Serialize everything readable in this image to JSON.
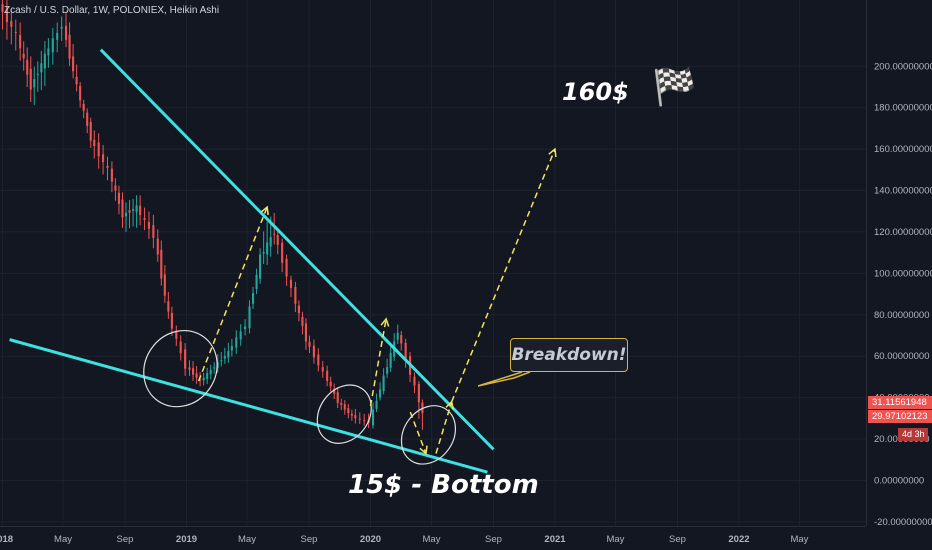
{
  "header": {
    "title": "Zcash / U.S. Dollar, 1W, POLONIEX, Heikin Ashi"
  },
  "annotations": {
    "target": "160$",
    "target_icon": "checkered-flag-icon",
    "bottom": "15$ - Bottom",
    "callout": "Breakdown!"
  },
  "price_tags": {
    "current_1": "31.11561948",
    "current_2": "29.97102123",
    "countdown": "4d 3h"
  },
  "colors": {
    "background": "#131722",
    "bull": "#26a69a",
    "bear": "#ef5350",
    "trendline": "#3ee0e0",
    "projection": "#f5e55b",
    "ellipse": "#e0e0e0",
    "grid": "#1e222d",
    "axis_text": "#b2b5be",
    "callout_border": "#d6b43e"
  },
  "chart_data": {
    "type": "candlestick",
    "title": "Zcash / U.S. Dollar, 1W, POLONIEX, Heikin Ashi",
    "ylim": [
      -22,
      232
    ],
    "y_ticks": [
      "-20.00000000",
      "0.00000000",
      "20.00000000",
      "40.00000000",
      "60.00000000",
      "80.00000000",
      "100.00000000",
      "120.00000000",
      "140.00000000",
      "160.00000000",
      "180.00000000",
      "200.00000000"
    ],
    "x_ticks": [
      "2018",
      "May",
      "Sep",
      "2019",
      "May",
      "Sep",
      "2020",
      "May",
      "Sep",
      "2021",
      "May",
      "Sep",
      "2022",
      "May"
    ],
    "grid": true,
    "series": [
      {
        "kind": "candles",
        "points": [
          {
            "t": "2018-01-01",
            "o": 230,
            "h": 240,
            "l": 200,
            "c": 215
          },
          {
            "t": "2018-02-05",
            "o": 215,
            "h": 225,
            "l": 180,
            "c": 190
          },
          {
            "t": "2018-03-05",
            "o": 190,
            "h": 215,
            "l": 175,
            "c": 205
          },
          {
            "t": "2018-04-02",
            "o": 205,
            "h": 228,
            "l": 195,
            "c": 220
          },
          {
            "t": "2018-05-07",
            "o": 220,
            "h": 230,
            "l": 185,
            "c": 190
          },
          {
            "t": "2018-06-04",
            "o": 190,
            "h": 192,
            "l": 160,
            "c": 165
          },
          {
            "t": "2018-07-02",
            "o": 165,
            "h": 172,
            "l": 140,
            "c": 150
          },
          {
            "t": "2018-08-06",
            "o": 150,
            "h": 155,
            "l": 120,
            "c": 128
          },
          {
            "t": "2018-09-03",
            "o": 128,
            "h": 140,
            "l": 115,
            "c": 132
          },
          {
            "t": "2018-10-01",
            "o": 132,
            "h": 140,
            "l": 110,
            "c": 118
          },
          {
            "t": "2018-11-05",
            "o": 118,
            "h": 125,
            "l": 75,
            "c": 80
          },
          {
            "t": "2018-12-03",
            "o": 80,
            "h": 84,
            "l": 50,
            "c": 55
          },
          {
            "t": "2019-01-07",
            "o": 55,
            "h": 60,
            "l": 44,
            "c": 48
          },
          {
            "t": "2019-02-04",
            "o": 48,
            "h": 58,
            "l": 45,
            "c": 55
          },
          {
            "t": "2019-03-04",
            "o": 55,
            "h": 68,
            "l": 52,
            "c": 62
          },
          {
            "t": "2019-04-01",
            "o": 62,
            "h": 80,
            "l": 58,
            "c": 75
          },
          {
            "t": "2019-05-06",
            "o": 75,
            "h": 112,
            "l": 72,
            "c": 108
          },
          {
            "t": "2019-06-03",
            "o": 108,
            "h": 138,
            "l": 100,
            "c": 120
          },
          {
            "t": "2019-07-01",
            "o": 120,
            "h": 122,
            "l": 85,
            "c": 92
          },
          {
            "t": "2019-08-05",
            "o": 92,
            "h": 95,
            "l": 62,
            "c": 68
          },
          {
            "t": "2019-09-02",
            "o": 68,
            "h": 72,
            "l": 48,
            "c": 52
          },
          {
            "t": "2019-10-07",
            "o": 52,
            "h": 55,
            "l": 35,
            "c": 38
          },
          {
            "t": "2019-11-04",
            "o": 38,
            "h": 40,
            "l": 28,
            "c": 31
          },
          {
            "t": "2019-12-02",
            "o": 31,
            "h": 35,
            "l": 25,
            "c": 28
          },
          {
            "t": "2020-01-06",
            "o": 28,
            "h": 55,
            "l": 27,
            "c": 50
          },
          {
            "t": "2020-02-03",
            "o": 50,
            "h": 78,
            "l": 48,
            "c": 72
          },
          {
            "t": "2020-03-02",
            "o": 72,
            "h": 74,
            "l": 40,
            "c": 45
          },
          {
            "t": "2020-04-06",
            "o": 45,
            "h": 46,
            "l": 18,
            "c": 32
          }
        ]
      },
      {
        "kind": "trendline",
        "name": "",
        "from": {
          "t": "2018-07-15",
          "y": 208
        },
        "to": {
          "t": "2020-09-01",
          "y": 15
        }
      },
      {
        "kind": "trendline",
        "name": "",
        "from": {
          "t": "2018-01-15",
          "y": 68
        },
        "to": {
          "t": "2020-08-20",
          "y": 4
        }
      },
      {
        "kind": "projection",
        "points": [
          {
            "t": "2019-01-25",
            "y": 48
          },
          {
            "t": "2019-06-10",
            "y": 132
          }
        ]
      },
      {
        "kind": "projection",
        "points": [
          {
            "t": "2020-01-01",
            "y": 36
          },
          {
            "t": "2020-02-01",
            "y": 78
          }
        ]
      },
      {
        "kind": "projection",
        "points": [
          {
            "t": "2020-03-20",
            "y": 33
          },
          {
            "t": "2020-04-20",
            "y": 13
          }
        ]
      },
      {
        "kind": "projection",
        "points": [
          {
            "t": "2020-05-10",
            "y": 13
          },
          {
            "t": "2020-06-10",
            "y": 38
          }
        ]
      },
      {
        "kind": "projection",
        "points": [
          {
            "t": "2020-06-10",
            "y": 38
          },
          {
            "t": "2021-01-01",
            "y": 160
          }
        ]
      }
    ],
    "ellipses": [
      {
        "t": "2018-12-20",
        "y": 54,
        "rx_weeks": 10,
        "ry": 19
      },
      {
        "t": "2019-11-10",
        "y": 32,
        "rx_weeks": 7,
        "ry": 15
      },
      {
        "t": "2020-04-25",
        "y": 22,
        "rx_weeks": 7,
        "ry": 15
      }
    ]
  }
}
